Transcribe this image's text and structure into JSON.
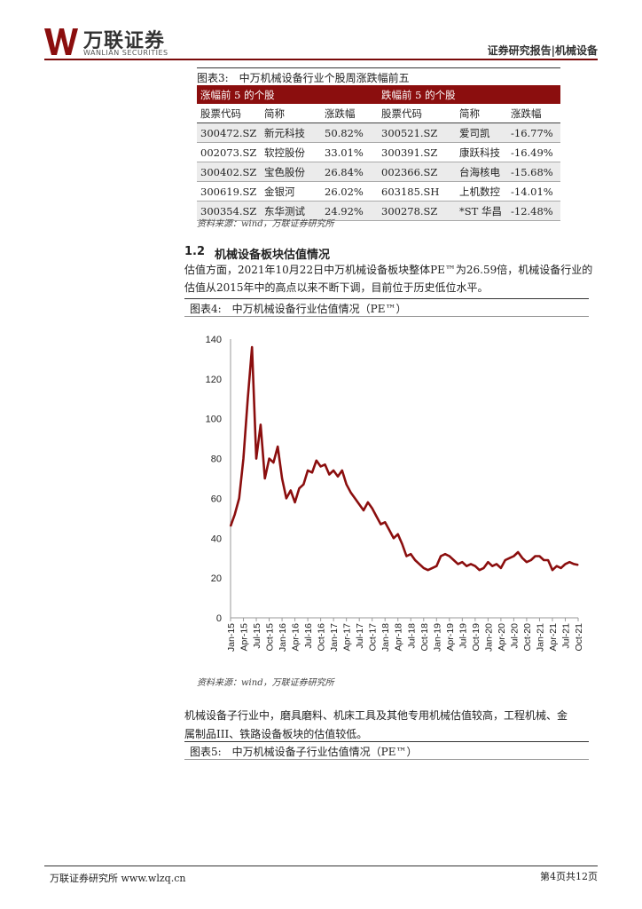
{
  "header": {
    "logo_cn": "万联证券",
    "logo_en": "WANLIAN SECURITIES",
    "report_tag": "证券研究报告|机械设备",
    "brand_color": "#7a0a0a"
  },
  "fig3": {
    "title": "图表3:　中万机械设备行业个股周涨跌幅前五",
    "gain_header": "涨幅前 5 的个股",
    "loss_header": "跌幅前 5 的个股",
    "columns": [
      "股票代码",
      "简称",
      "涨跌幅",
      "股票代码",
      "简称",
      "涨跌幅"
    ],
    "rows": [
      [
        "300472.SZ",
        "新元科技",
        "50.82%",
        "300521.SZ",
        "爱司凯",
        "-16.77%"
      ],
      [
        "002073.SZ",
        "软控股份",
        "33.01%",
        "300391.SZ",
        "康跃科技",
        "-16.49%"
      ],
      [
        "300402.SZ",
        "宝色股份",
        "26.84%",
        "002366.SZ",
        "台海核电",
        "-15.68%"
      ],
      [
        "300619.SZ",
        "金银河",
        "26.02%",
        "603185.SH",
        "上机数控",
        "-14.01%"
      ],
      [
        "300354.SZ",
        "东华测试",
        "24.92%",
        "300278.SZ",
        "*ST 华昌",
        "-12.48%"
      ]
    ],
    "source": "资料来源：wind，万联证券研究所"
  },
  "section": {
    "number": "1.2",
    "title": "机械设备板块估值情况",
    "paragraph_line1": "估值方面，2021年10月22日中万机械设备板块整体PE™为26.59倍，机械设备行业的",
    "paragraph_line2": "估值从2015年中的高点以来不断下调，目前位于历史低位水平。"
  },
  "fig4": {
    "title": "图表4:　中万机械设备行业估值情况（PE™）",
    "source": "资料来源：wind，万联证券研究所"
  },
  "chart_data": {
    "type": "line",
    "title": "",
    "xlabel": "",
    "ylabel": "",
    "ylim": [
      0,
      140
    ],
    "yticks": [
      0,
      20,
      40,
      60,
      80,
      100,
      120,
      140
    ],
    "xticks": [
      "Jan-15",
      "Apr-15",
      "Jul-15",
      "Oct-15",
      "Jan-16",
      "Apr-16",
      "Jul-16",
      "Oct-16",
      "Jan-17",
      "Apr-17",
      "Jul-17",
      "Oct-17",
      "Jan-18",
      "Apr-18",
      "Jul-18",
      "Oct-18",
      "Jan-19",
      "Apr-19",
      "Jul-19",
      "Oct-19",
      "Jan-20",
      "Apr-20",
      "Jul-20",
      "Oct-20",
      "Jan-21",
      "Apr-21",
      "Jul-21",
      "Oct-21"
    ],
    "line_color": "#8b0e0e",
    "series": [
      {
        "x": [
          "2015-01",
          "2015-02",
          "2015-03",
          "2015-04",
          "2015-05",
          "2015-06",
          "2015-07",
          "2015-08",
          "2015-09",
          "2015-10",
          "2015-11",
          "2015-12",
          "2016-01",
          "2016-02",
          "2016-03",
          "2016-04",
          "2016-05",
          "2016-06",
          "2016-07",
          "2016-08",
          "2016-09",
          "2016-10",
          "2016-11",
          "2016-12",
          "2017-01",
          "2017-02",
          "2017-03",
          "2017-04",
          "2017-05",
          "2017-06",
          "2017-07",
          "2017-08",
          "2017-09",
          "2017-10",
          "2017-11",
          "2017-12",
          "2018-01",
          "2018-02",
          "2018-03",
          "2018-04",
          "2018-05",
          "2018-06",
          "2018-07",
          "2018-08",
          "2018-09",
          "2018-10",
          "2018-11",
          "2018-12",
          "2019-01",
          "2019-02",
          "2019-03",
          "2019-04",
          "2019-05",
          "2019-06",
          "2019-07",
          "2019-08",
          "2019-09",
          "2019-10",
          "2019-11",
          "2019-12",
          "2020-01",
          "2020-02",
          "2020-03",
          "2020-04",
          "2020-05",
          "2020-06",
          "2020-07",
          "2020-08",
          "2020-09",
          "2020-10",
          "2020-11",
          "2020-12",
          "2021-01",
          "2021-02",
          "2021-03",
          "2021-04",
          "2021-05",
          "2021-06",
          "2021-07",
          "2021-08",
          "2021-09",
          "2021-10"
        ],
        "values": [
          46,
          52,
          60,
          80,
          110,
          136,
          80,
          97,
          70,
          80,
          78,
          86,
          70,
          60,
          64,
          58,
          65,
          67,
          74,
          73,
          79,
          76,
          77,
          72,
          74,
          71,
          74,
          67,
          63,
          60,
          57,
          54,
          58,
          55,
          51,
          47,
          48,
          44,
          40,
          42,
          37,
          31,
          32,
          29,
          27,
          25,
          24,
          25,
          26,
          31,
          32,
          31,
          29,
          27,
          28,
          26,
          27,
          26,
          24,
          25,
          28,
          26,
          27,
          25,
          29,
          30,
          31,
          33,
          30,
          28,
          29,
          31,
          31,
          29,
          29,
          24,
          26,
          25,
          27,
          28,
          27,
          26.59
        ]
      }
    ]
  },
  "para2": {
    "line1": "机械设备子行业中，磨具磨料、机床工具及其他专用机械估值较高，工程机械、金",
    "line2": "属制品III、铁路设备板块的估值较低。"
  },
  "fig5": {
    "title": "图表5:　中万机械设备子行业估值情况（PE™）"
  },
  "footer": {
    "left": "万联证券研究所 www.wlzq.cn",
    "right": "第4页共12页"
  }
}
